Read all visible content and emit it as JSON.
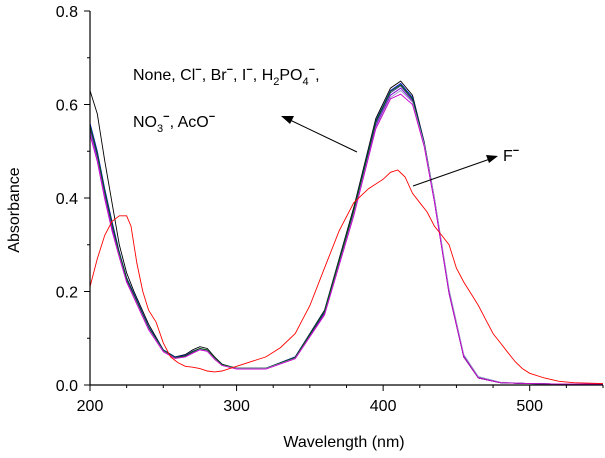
{
  "chart_data": {
    "type": "line",
    "title": "",
    "xlabel": "Wavelength (nm)",
    "ylabel": "Absorbance",
    "xlim": [
      200,
      550
    ],
    "ylim": [
      0.0,
      0.8
    ],
    "xticks": [
      "200",
      "300",
      "400",
      "500"
    ],
    "yticks": [
      "0.0",
      "0.2",
      "0.4",
      "0.6",
      "0.8"
    ],
    "grid": false,
    "legend": "none",
    "annotations": {
      "group1_line1": [
        "None, Cl",
        "−",
        ", Br",
        "−",
        ", I",
        "−",
        ", H",
        "2",
        "PO",
        "4",
        "−",
        ","
      ],
      "group1_line2": [
        "NO",
        "3",
        "−",
        ", AcO",
        "−"
      ],
      "group2": [
        "F",
        "−"
      ]
    },
    "series": [
      {
        "name": "None",
        "color": "#000000",
        "x": [
          200,
          205,
          210,
          215,
          220,
          225,
          230,
          240,
          250,
          258,
          265,
          270,
          275,
          280,
          285,
          290,
          300,
          320,
          340,
          360,
          380,
          395,
          405,
          412,
          420,
          428,
          435,
          445,
          455,
          465,
          480,
          500,
          520,
          550
        ],
        "y": [
          0.63,
          0.58,
          0.48,
          0.39,
          0.3,
          0.24,
          0.2,
          0.13,
          0.075,
          0.06,
          0.065,
          0.075,
          0.082,
          0.078,
          0.06,
          0.045,
          0.035,
          0.035,
          0.06,
          0.16,
          0.38,
          0.57,
          0.635,
          0.65,
          0.62,
          0.52,
          0.4,
          0.2,
          0.06,
          0.015,
          0.005,
          0.003,
          0.002,
          0.002
        ]
      },
      {
        "name": "Cl−",
        "color": "#0000cc",
        "x": [
          200,
          205,
          210,
          215,
          220,
          225,
          230,
          240,
          250,
          258,
          265,
          270,
          275,
          280,
          285,
          290,
          300,
          320,
          340,
          360,
          380,
          395,
          405,
          412,
          420,
          428,
          435,
          445,
          455,
          465,
          480,
          500,
          520,
          550
        ],
        "y": [
          0.56,
          0.5,
          0.42,
          0.35,
          0.285,
          0.23,
          0.195,
          0.125,
          0.075,
          0.06,
          0.063,
          0.072,
          0.078,
          0.075,
          0.058,
          0.044,
          0.036,
          0.036,
          0.06,
          0.158,
          0.375,
          0.565,
          0.63,
          0.645,
          0.615,
          0.518,
          0.398,
          0.198,
          0.06,
          0.015,
          0.005,
          0.003,
          0.002,
          0.002
        ]
      },
      {
        "name": "Br−",
        "color": "#333399",
        "x": [
          200,
          205,
          210,
          215,
          220,
          225,
          230,
          240,
          250,
          258,
          265,
          270,
          275,
          280,
          285,
          290,
          300,
          320,
          340,
          360,
          380,
          395,
          405,
          412,
          420,
          428,
          435,
          445,
          455,
          465,
          480,
          500,
          520,
          550
        ],
        "y": [
          0.55,
          0.49,
          0.41,
          0.34,
          0.28,
          0.225,
          0.19,
          0.122,
          0.073,
          0.058,
          0.062,
          0.07,
          0.077,
          0.074,
          0.057,
          0.043,
          0.035,
          0.035,
          0.058,
          0.155,
          0.372,
          0.56,
          0.625,
          0.64,
          0.61,
          0.515,
          0.395,
          0.2,
          0.062,
          0.016,
          0.005,
          0.003,
          0.002,
          0.002
        ]
      },
      {
        "name": "I−",
        "color": "#7a00cc",
        "x": [
          200,
          205,
          210,
          215,
          220,
          225,
          230,
          240,
          250,
          258,
          265,
          270,
          275,
          280,
          285,
          290,
          300,
          320,
          340,
          360,
          380,
          395,
          405,
          412,
          420,
          428,
          435,
          445,
          455,
          465,
          480,
          500,
          520,
          550
        ],
        "y": [
          0.545,
          0.485,
          0.405,
          0.335,
          0.278,
          0.222,
          0.19,
          0.12,
          0.072,
          0.058,
          0.061,
          0.069,
          0.076,
          0.073,
          0.056,
          0.043,
          0.035,
          0.035,
          0.057,
          0.152,
          0.368,
          0.555,
          0.62,
          0.635,
          0.607,
          0.512,
          0.392,
          0.195,
          0.06,
          0.015,
          0.005,
          0.003,
          0.002,
          0.002
        ]
      },
      {
        "name": "H2PO4−",
        "color": "#006600",
        "x": [
          200,
          205,
          210,
          215,
          220,
          225,
          230,
          240,
          250,
          258,
          265,
          270,
          275,
          280,
          285,
          290,
          300,
          320,
          340,
          360,
          380,
          395,
          405,
          412,
          420,
          428,
          435,
          445,
          455,
          465,
          480,
          500,
          520,
          550
        ],
        "y": [
          0.555,
          0.495,
          0.415,
          0.345,
          0.282,
          0.228,
          0.192,
          0.123,
          0.074,
          0.059,
          0.062,
          0.071,
          0.078,
          0.075,
          0.058,
          0.044,
          0.036,
          0.036,
          0.059,
          0.157,
          0.374,
          0.563,
          0.628,
          0.642,
          0.612,
          0.516,
          0.396,
          0.197,
          0.06,
          0.015,
          0.005,
          0.003,
          0.002,
          0.002
        ]
      },
      {
        "name": "NO3−",
        "color": "#9999cc",
        "x": [
          200,
          205,
          210,
          215,
          220,
          225,
          230,
          240,
          250,
          258,
          265,
          270,
          275,
          280,
          285,
          290,
          300,
          320,
          340,
          360,
          380,
          395,
          405,
          412,
          420,
          428,
          435,
          445,
          455,
          465,
          480,
          500,
          520,
          550
        ],
        "y": [
          0.54,
          0.48,
          0.4,
          0.33,
          0.275,
          0.22,
          0.188,
          0.12,
          0.072,
          0.057,
          0.06,
          0.068,
          0.076,
          0.073,
          0.056,
          0.042,
          0.035,
          0.035,
          0.057,
          0.15,
          0.365,
          0.55,
          0.615,
          0.63,
          0.605,
          0.515,
          0.4,
          0.205,
          0.065,
          0.018,
          0.006,
          0.003,
          0.002,
          0.002
        ]
      },
      {
        "name": "AcO−",
        "color": "#cc00cc",
        "x": [
          200,
          205,
          210,
          215,
          220,
          225,
          230,
          240,
          250,
          258,
          265,
          270,
          275,
          280,
          285,
          290,
          300,
          320,
          340,
          360,
          380,
          395,
          405,
          412,
          420,
          428,
          435,
          445,
          455,
          465,
          480,
          500,
          520,
          550
        ],
        "y": [
          0.535,
          0.478,
          0.398,
          0.33,
          0.273,
          0.22,
          0.186,
          0.118,
          0.071,
          0.057,
          0.06,
          0.068,
          0.075,
          0.072,
          0.055,
          0.042,
          0.034,
          0.034,
          0.056,
          0.15,
          0.362,
          0.548,
          0.612,
          0.622,
          0.6,
          0.51,
          0.392,
          0.196,
          0.06,
          0.015,
          0.005,
          0.003,
          0.002,
          0.002
        ]
      },
      {
        "name": "F−",
        "color": "#ff0000",
        "x": [
          200,
          205,
          210,
          215,
          220,
          225,
          228,
          232,
          236,
          240,
          245,
          250,
          255,
          260,
          265,
          270,
          275,
          280,
          285,
          290,
          300,
          310,
          320,
          330,
          340,
          350,
          360,
          370,
          380,
          390,
          400,
          405,
          410,
          415,
          420,
          425,
          430,
          435,
          440,
          445,
          450,
          455,
          460,
          465,
          470,
          475,
          480,
          485,
          490,
          495,
          500,
          510,
          520,
          530,
          550
        ],
        "y": [
          0.21,
          0.27,
          0.32,
          0.35,
          0.362,
          0.362,
          0.34,
          0.26,
          0.2,
          0.16,
          0.135,
          0.09,
          0.06,
          0.048,
          0.04,
          0.038,
          0.035,
          0.03,
          0.028,
          0.03,
          0.04,
          0.05,
          0.06,
          0.08,
          0.11,
          0.17,
          0.25,
          0.33,
          0.39,
          0.42,
          0.44,
          0.455,
          0.46,
          0.445,
          0.41,
          0.39,
          0.37,
          0.34,
          0.32,
          0.3,
          0.25,
          0.22,
          0.195,
          0.17,
          0.14,
          0.11,
          0.09,
          0.07,
          0.05,
          0.035,
          0.025,
          0.015,
          0.008,
          0.005,
          0.003
        ]
      }
    ]
  }
}
